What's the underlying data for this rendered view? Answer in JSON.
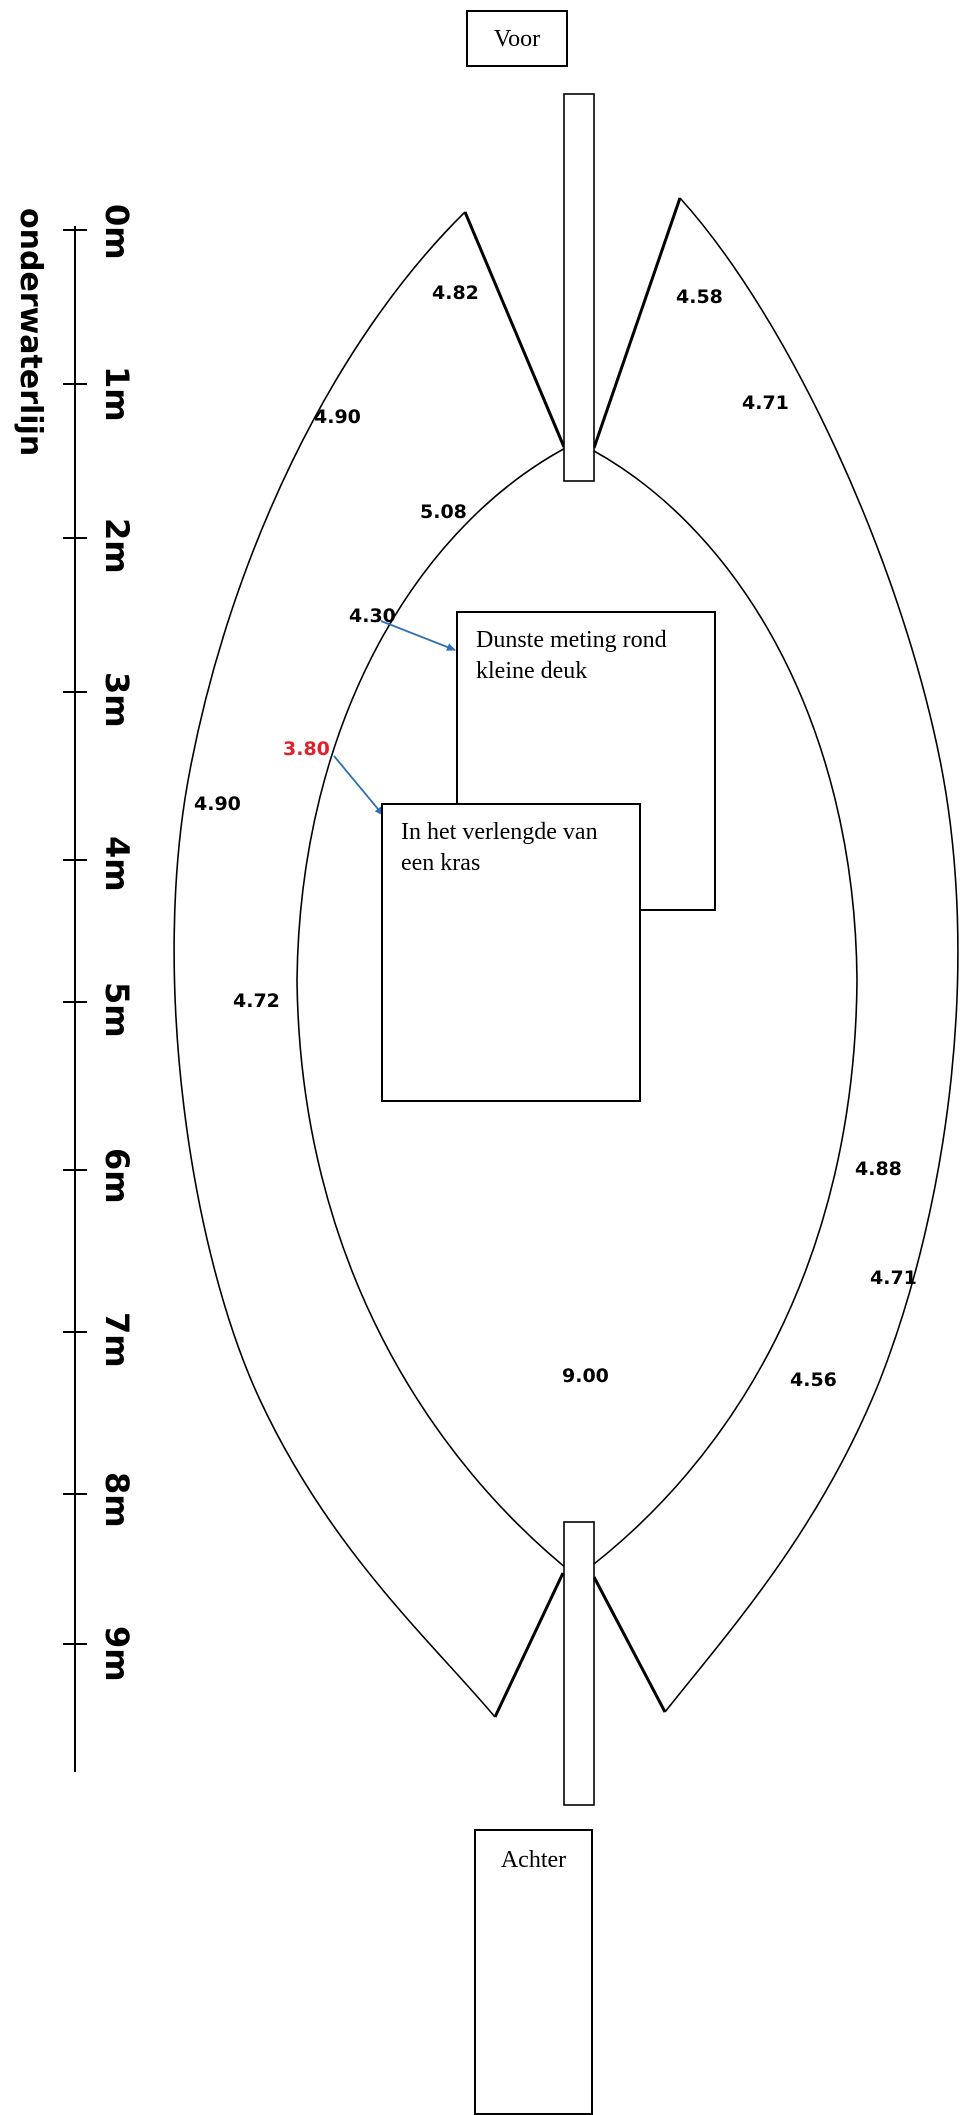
{
  "labels": {
    "front": "Voor",
    "rear": "Achter"
  },
  "axis": {
    "title": "onderwaterlijn",
    "ticks": [
      "0m",
      "1m",
      "2m",
      "3m",
      "4m",
      "5m",
      "6m",
      "7m",
      "8m",
      "9m"
    ]
  },
  "measurements": {
    "m_482": "4.82",
    "m_458": "4.58",
    "m_490_top": "4.90",
    "m_471_top": "4.71",
    "m_508": "5.08",
    "m_430": "4.30",
    "m_380": "3.80",
    "m_490_mid": "4.90",
    "m_472": "4.72",
    "m_488": "4.88",
    "m_471_bottom": "4.71",
    "m_900": "9.00",
    "m_456": "4.56"
  },
  "notes": {
    "dent": "Dunste meting rond kleine deuk",
    "scratch": "In het verlengde van een kras"
  },
  "colors": {
    "highlight": "#e0202a",
    "arrow": "#2e6fb5"
  }
}
